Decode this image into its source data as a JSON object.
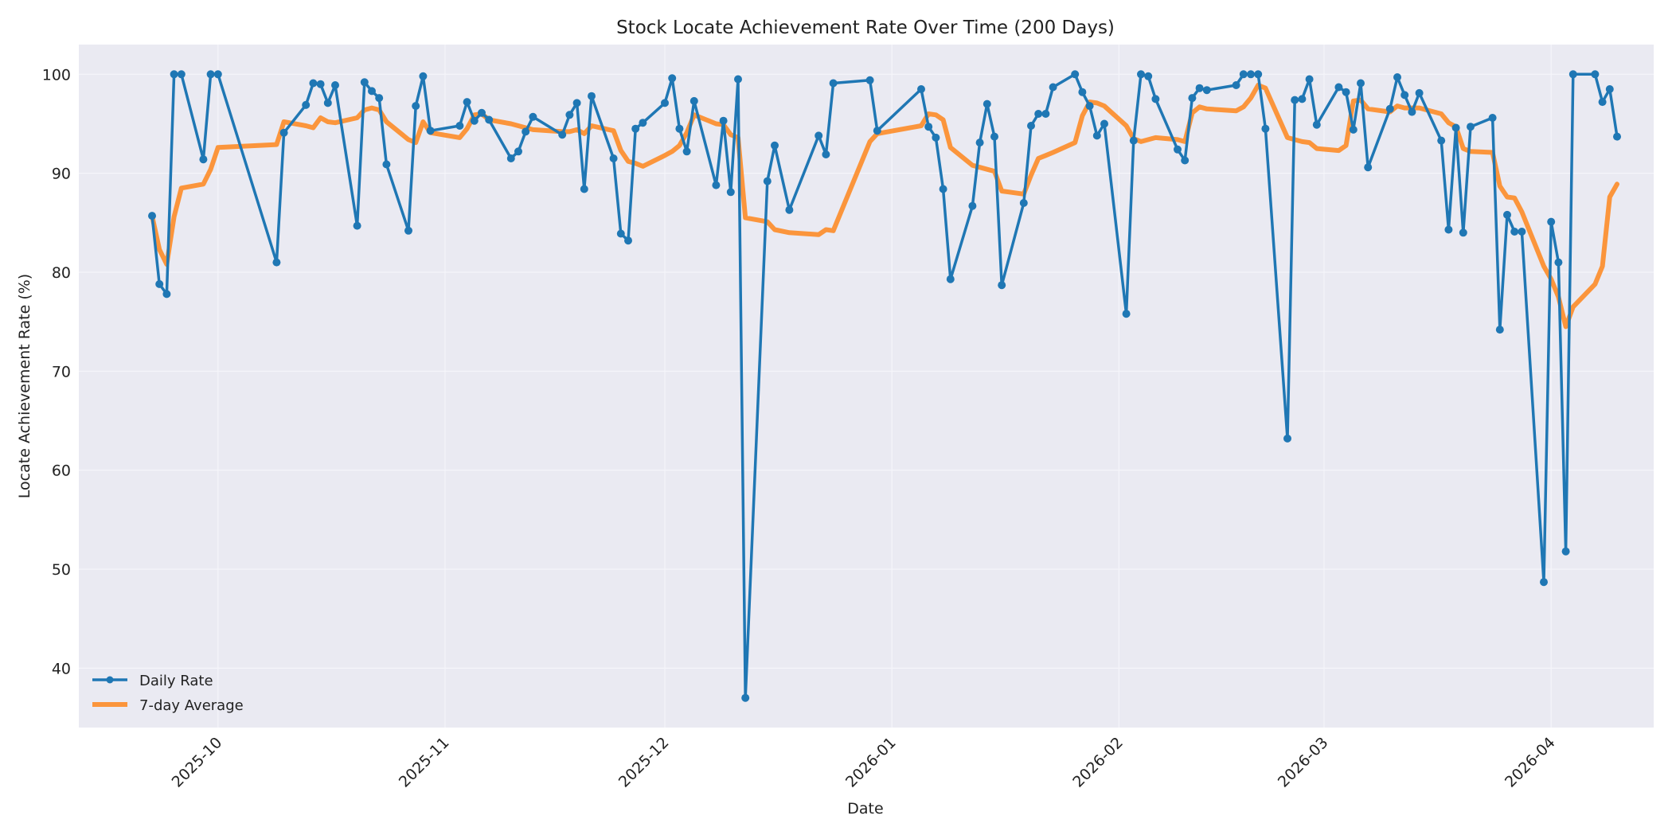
{
  "chart_data": {
    "type": "line",
    "title": "Stock Locate Achievement Rate Over Time (200 Days)",
    "xlabel": "Date",
    "ylabel": "Locate Achievement Rate (%)",
    "xlim": [
      "2025-09-12",
      "2026-04-15"
    ],
    "ylim": [
      34,
      103
    ],
    "grid": true,
    "legend_position": "lower-left",
    "x_ticks": [
      {
        "date": "2025-10-01",
        "label": "2025-10"
      },
      {
        "date": "2025-11-01",
        "label": "2025-11"
      },
      {
        "date": "2025-12-01",
        "label": "2025-12"
      },
      {
        "date": "2026-01-01",
        "label": "2026-01"
      },
      {
        "date": "2026-02-01",
        "label": "2026-02"
      },
      {
        "date": "2026-03-01",
        "label": "2026-03"
      },
      {
        "date": "2026-04-01",
        "label": "2026-04"
      }
    ],
    "y_ticks": [
      40,
      50,
      60,
      70,
      80,
      90,
      100
    ],
    "colors": {
      "daily": "#1f77b4",
      "average": "#ff7f0e",
      "plot_bg": "#eaeaf2",
      "grid": "#f5f5fa"
    },
    "series": [
      {
        "name": "Daily Rate",
        "style": "line-marker",
        "points": [
          [
            "2025-09-22",
            85.7
          ],
          [
            "2025-09-23",
            78.8
          ],
          [
            "2025-09-24",
            77.8
          ],
          [
            "2025-09-25",
            100
          ],
          [
            "2025-09-26",
            100
          ],
          [
            "2025-09-29",
            91.4
          ],
          [
            "2025-09-30",
            100
          ],
          [
            "2025-10-01",
            100
          ],
          [
            "2025-10-09",
            81.0
          ],
          [
            "2025-10-10",
            94.1
          ],
          [
            "2025-10-13",
            96.9
          ],
          [
            "2025-10-14",
            99.1
          ],
          [
            "2025-10-15",
            99.0
          ],
          [
            "2025-10-16",
            97.1
          ],
          [
            "2025-10-17",
            98.9
          ],
          [
            "2025-10-20",
            84.7
          ],
          [
            "2025-10-21",
            99.2
          ],
          [
            "2025-10-22",
            98.3
          ],
          [
            "2025-10-23",
            97.6
          ],
          [
            "2025-10-24",
            90.9
          ],
          [
            "2025-10-27",
            84.2
          ],
          [
            "2025-10-28",
            96.8
          ],
          [
            "2025-10-29",
            99.8
          ],
          [
            "2025-10-30",
            94.3
          ],
          [
            "2025-11-03",
            94.8
          ],
          [
            "2025-11-04",
            97.2
          ],
          [
            "2025-11-05",
            95.3
          ],
          [
            "2025-11-06",
            96.1
          ],
          [
            "2025-11-07",
            95.4
          ],
          [
            "2025-11-10",
            91.5
          ],
          [
            "2025-11-11",
            92.2
          ],
          [
            "2025-11-12",
            94.2
          ],
          [
            "2025-11-13",
            95.7
          ],
          [
            "2025-11-17",
            93.9
          ],
          [
            "2025-11-18",
            95.9
          ],
          [
            "2025-11-19",
            97.1
          ],
          [
            "2025-11-20",
            88.4
          ],
          [
            "2025-11-21",
            97.8
          ],
          [
            "2025-11-24",
            91.5
          ],
          [
            "2025-11-25",
            83.9
          ],
          [
            "2025-11-26",
            83.2
          ],
          [
            "2025-11-27",
            94.5
          ],
          [
            "2025-11-28",
            95.1
          ],
          [
            "2025-12-01",
            97.1
          ],
          [
            "2025-12-02",
            99.6
          ],
          [
            "2025-12-03",
            94.5
          ],
          [
            "2025-12-04",
            92.2
          ],
          [
            "2025-12-05",
            97.3
          ],
          [
            "2025-12-08",
            88.8
          ],
          [
            "2025-12-09",
            95.3
          ],
          [
            "2025-12-10",
            88.1
          ],
          [
            "2025-12-11",
            99.5
          ],
          [
            "2025-12-12",
            37.0
          ],
          [
            "2025-12-15",
            89.2
          ],
          [
            "2025-12-16",
            92.8
          ],
          [
            "2025-12-18",
            86.3
          ],
          [
            "2025-12-22",
            93.8
          ],
          [
            "2025-12-23",
            91.9
          ],
          [
            "2025-12-24",
            99.1
          ],
          [
            "2025-12-29",
            99.4
          ],
          [
            "2025-12-30",
            94.3
          ],
          [
            "2026-01-05",
            98.5
          ],
          [
            "2026-01-06",
            94.7
          ],
          [
            "2026-01-07",
            93.6
          ],
          [
            "2026-01-08",
            88.4
          ],
          [
            "2026-01-09",
            79.3
          ],
          [
            "2026-01-12",
            86.7
          ],
          [
            "2026-01-13",
            93.1
          ],
          [
            "2026-01-14",
            97.0
          ],
          [
            "2026-01-15",
            93.7
          ],
          [
            "2026-01-16",
            78.7
          ],
          [
            "2026-01-19",
            87.0
          ],
          [
            "2026-01-20",
            94.8
          ],
          [
            "2026-01-21",
            96.0
          ],
          [
            "2026-01-22",
            96.0
          ],
          [
            "2026-01-23",
            98.7
          ],
          [
            "2026-01-26",
            100
          ],
          [
            "2026-01-27",
            98.2
          ],
          [
            "2026-01-28",
            96.8
          ],
          [
            "2026-01-29",
            93.8
          ],
          [
            "2026-01-30",
            95.0
          ],
          [
            "2026-02-02",
            75.8
          ],
          [
            "2026-02-03",
            93.3
          ],
          [
            "2026-02-04",
            100
          ],
          [
            "2026-02-05",
            99.8
          ],
          [
            "2026-02-06",
            97.5
          ],
          [
            "2026-02-09",
            92.4
          ],
          [
            "2026-02-10",
            91.3
          ],
          [
            "2026-02-11",
            97.6
          ],
          [
            "2026-02-12",
            98.6
          ],
          [
            "2026-02-13",
            98.4
          ],
          [
            "2026-02-17",
            98.9
          ],
          [
            "2026-02-18",
            100
          ],
          [
            "2026-02-19",
            100
          ],
          [
            "2026-02-20",
            100
          ],
          [
            "2026-02-21",
            94.5
          ],
          [
            "2026-02-24",
            63.2
          ],
          [
            "2026-02-25",
            97.4
          ],
          [
            "2026-02-26",
            97.5
          ],
          [
            "2026-02-27",
            99.5
          ],
          [
            "2026-02-28",
            94.9
          ],
          [
            "2026-03-03",
            98.7
          ],
          [
            "2026-03-04",
            98.2
          ],
          [
            "2026-03-05",
            94.4
          ],
          [
            "2026-03-06",
            99.1
          ],
          [
            "2026-03-07",
            90.6
          ],
          [
            "2026-03-10",
            96.5
          ],
          [
            "2026-03-11",
            99.7
          ],
          [
            "2026-03-12",
            97.9
          ],
          [
            "2026-03-13",
            96.2
          ],
          [
            "2026-03-14",
            98.1
          ],
          [
            "2026-03-17",
            93.3
          ],
          [
            "2026-03-18",
            84.3
          ],
          [
            "2026-03-19",
            94.6
          ],
          [
            "2026-03-20",
            84.0
          ],
          [
            "2026-03-21",
            94.7
          ],
          [
            "2026-03-24",
            95.6
          ],
          [
            "2026-03-25",
            74.2
          ],
          [
            "2026-03-26",
            85.8
          ],
          [
            "2026-03-27",
            84.1
          ],
          [
            "2026-03-28",
            84.1
          ],
          [
            "2026-03-31",
            48.7
          ],
          [
            "2026-04-01",
            85.1
          ],
          [
            "2026-04-02",
            81.0
          ],
          [
            "2026-04-03",
            51.8
          ],
          [
            "2026-04-04",
            100
          ],
          [
            "2026-04-07",
            100
          ],
          [
            "2026-04-08",
            97.2
          ],
          [
            "2026-04-09",
            98.5
          ],
          [
            "2026-04-10",
            93.7
          ]
        ]
      },
      {
        "name": "7-day Average",
        "style": "line",
        "points": [
          [
            "2025-09-22",
            85.7
          ],
          [
            "2025-09-23",
            82.3
          ],
          [
            "2025-09-24",
            80.8
          ],
          [
            "2025-09-25",
            85.6
          ],
          [
            "2025-09-26",
            88.5
          ],
          [
            "2025-09-29",
            88.9
          ],
          [
            "2025-09-30",
            90.4
          ],
          [
            "2025-10-01",
            92.6
          ],
          [
            "2025-10-09",
            92.9
          ],
          [
            "2025-10-10",
            95.2
          ],
          [
            "2025-10-13",
            94.8
          ],
          [
            "2025-10-14",
            94.6
          ],
          [
            "2025-10-15",
            95.6
          ],
          [
            "2025-10-16",
            95.2
          ],
          [
            "2025-10-17",
            95.1
          ],
          [
            "2025-10-20",
            95.6
          ],
          [
            "2025-10-21",
            96.4
          ],
          [
            "2025-10-22",
            96.6
          ],
          [
            "2025-10-23",
            96.4
          ],
          [
            "2025-10-24",
            95.2
          ],
          [
            "2025-10-27",
            93.4
          ],
          [
            "2025-10-28",
            93.1
          ],
          [
            "2025-10-29",
            95.2
          ],
          [
            "2025-10-30",
            94.1
          ],
          [
            "2025-11-03",
            93.6
          ],
          [
            "2025-11-04",
            94.5
          ],
          [
            "2025-11-05",
            95.9
          ],
          [
            "2025-11-06",
            96.0
          ],
          [
            "2025-11-07",
            95.4
          ],
          [
            "2025-11-10",
            95.0
          ],
          [
            "2025-11-11",
            94.8
          ],
          [
            "2025-11-12",
            94.6
          ],
          [
            "2025-11-13",
            94.4
          ],
          [
            "2025-11-17",
            94.2
          ],
          [
            "2025-11-18",
            94.2
          ],
          [
            "2025-11-19",
            94.4
          ],
          [
            "2025-11-20",
            94.0
          ],
          [
            "2025-11-21",
            94.8
          ],
          [
            "2025-11-24",
            94.3
          ],
          [
            "2025-11-25",
            92.3
          ],
          [
            "2025-11-26",
            91.2
          ],
          [
            "2025-11-27",
            91.0
          ],
          [
            "2025-11-28",
            90.7
          ],
          [
            "2025-12-01",
            91.8
          ],
          [
            "2025-12-02",
            92.2
          ],
          [
            "2025-12-03",
            92.8
          ],
          [
            "2025-12-04",
            94.1
          ],
          [
            "2025-12-05",
            95.9
          ],
          [
            "2025-12-08",
            95.0
          ],
          [
            "2025-12-09",
            94.9
          ],
          [
            "2025-12-10",
            93.9
          ],
          [
            "2025-12-11",
            93.6
          ],
          [
            "2025-12-12",
            85.5
          ],
          [
            "2025-12-15",
            85.1
          ],
          [
            "2025-12-16",
            84.3
          ],
          [
            "2025-12-18",
            84.0
          ],
          [
            "2025-12-22",
            83.8
          ],
          [
            "2025-12-23",
            84.3
          ],
          [
            "2025-12-24",
            84.2
          ],
          [
            "2025-12-29",
            93.2
          ],
          [
            "2025-12-30",
            94.0
          ],
          [
            "2026-01-05",
            94.8
          ],
          [
            "2026-01-06",
            96.0
          ],
          [
            "2026-01-07",
            95.9
          ],
          [
            "2026-01-08",
            95.4
          ],
          [
            "2026-01-09",
            92.6
          ],
          [
            "2026-01-12",
            90.8
          ],
          [
            "2026-01-13",
            90.6
          ],
          [
            "2026-01-14",
            90.4
          ],
          [
            "2026-01-15",
            90.2
          ],
          [
            "2026-01-16",
            88.2
          ],
          [
            "2026-01-19",
            87.9
          ],
          [
            "2026-01-20",
            89.8
          ],
          [
            "2026-01-21",
            91.5
          ],
          [
            "2026-01-22",
            91.8
          ],
          [
            "2026-01-23",
            92.1
          ],
          [
            "2026-01-26",
            93.1
          ],
          [
            "2026-01-27",
            95.8
          ],
          [
            "2026-01-28",
            97.2
          ],
          [
            "2026-01-29",
            97.1
          ],
          [
            "2026-01-30",
            96.8
          ],
          [
            "2026-02-02",
            94.8
          ],
          [
            "2026-02-03",
            93.5
          ],
          [
            "2026-02-04",
            93.2
          ],
          [
            "2026-02-05",
            93.4
          ],
          [
            "2026-02-06",
            93.6
          ],
          [
            "2026-02-09",
            93.4
          ],
          [
            "2026-02-10",
            93.2
          ],
          [
            "2026-02-11",
            96.1
          ],
          [
            "2026-02-12",
            96.7
          ],
          [
            "2026-02-13",
            96.5
          ],
          [
            "2026-02-17",
            96.3
          ],
          [
            "2026-02-18",
            96.7
          ],
          [
            "2026-02-19",
            97.6
          ],
          [
            "2026-02-20",
            98.9
          ],
          [
            "2026-02-21",
            98.6
          ],
          [
            "2026-02-24",
            93.6
          ],
          [
            "2026-02-25",
            93.4
          ],
          [
            "2026-02-26",
            93.2
          ],
          [
            "2026-02-27",
            93.1
          ],
          [
            "2026-02-28",
            92.5
          ],
          [
            "2026-03-03",
            92.3
          ],
          [
            "2026-03-04",
            92.8
          ],
          [
            "2026-03-05",
            97.3
          ],
          [
            "2026-03-06",
            97.4
          ],
          [
            "2026-03-07",
            96.5
          ],
          [
            "2026-03-10",
            96.2
          ],
          [
            "2026-03-11",
            96.8
          ],
          [
            "2026-03-12",
            96.6
          ],
          [
            "2026-03-13",
            96.6
          ],
          [
            "2026-03-14",
            96.6
          ],
          [
            "2026-03-17",
            96.0
          ],
          [
            "2026-03-18",
            95.1
          ],
          [
            "2026-03-19",
            94.7
          ],
          [
            "2026-03-20",
            92.5
          ],
          [
            "2026-03-21",
            92.2
          ],
          [
            "2026-03-24",
            92.1
          ],
          [
            "2026-03-25",
            88.7
          ],
          [
            "2026-03-26",
            87.6
          ],
          [
            "2026-03-27",
            87.5
          ],
          [
            "2026-03-28",
            86.1
          ],
          [
            "2026-03-31",
            80.6
          ],
          [
            "2026-04-01",
            79.3
          ],
          [
            "2026-04-02",
            77.5
          ],
          [
            "2026-04-03",
            74.5
          ],
          [
            "2026-04-04",
            76.5
          ],
          [
            "2026-04-07",
            78.8
          ],
          [
            "2026-04-08",
            80.6
          ],
          [
            "2026-04-09",
            87.6
          ],
          [
            "2026-04-10",
            88.9
          ]
        ]
      }
    ]
  }
}
